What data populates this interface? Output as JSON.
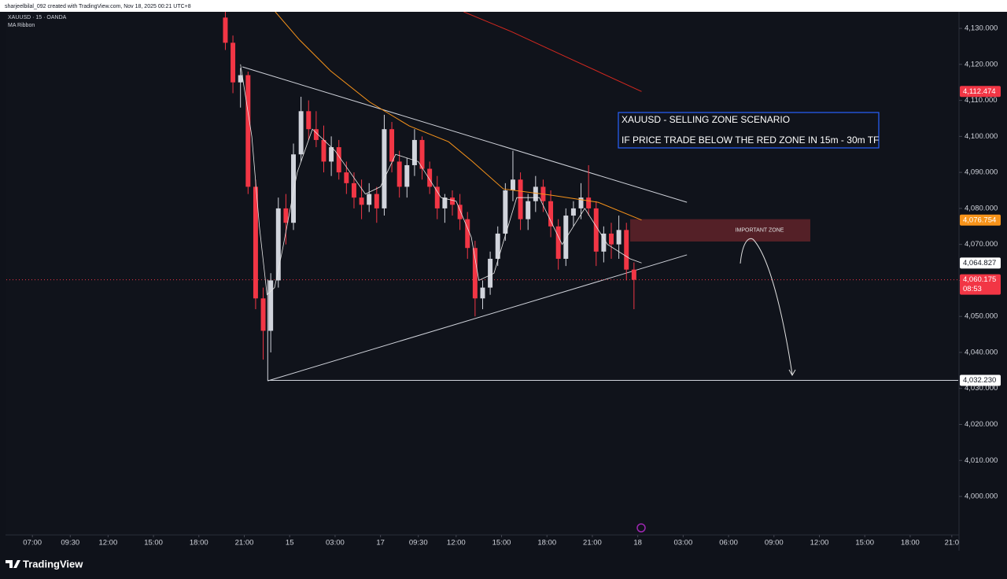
{
  "chart_data": {
    "type": "candlestick",
    "header": {
      "credit": "sharjeelbilal_092 created with TradingView.com, Nov 18, 2025 00:21 UTC+8",
      "symbol": "XAUUSD · 15 · OANDA",
      "indicator": "MA Ribbon"
    },
    "logo": "TradingView",
    "up_color": "#d1d4dc",
    "down_color": "#f23645",
    "x": [
      51,
      53,
      55,
      57,
      59,
      61,
      63,
      65,
      67,
      69,
      71,
      73,
      75,
      77,
      79,
      81,
      83,
      85,
      87,
      89,
      91,
      93,
      95,
      97,
      99,
      101,
      103,
      105,
      107,
      109,
      111,
      113,
      115,
      117,
      119,
      121,
      123,
      125,
      127,
      129,
      131,
      133,
      135,
      137,
      139,
      141,
      143,
      145,
      147,
      149,
      151,
      153,
      155,
      157,
      159
    ],
    "open": [
      4133,
      4126,
      4115,
      4117,
      4086,
      4055,
      4046,
      4060,
      4080,
      4076,
      4095,
      4107,
      4102,
      4099,
      4093,
      4097,
      4090,
      4087,
      4083,
      4081,
      4084,
      4080,
      4102,
      4093,
      4086,
      4092,
      4099,
      4091,
      4086,
      4080,
      4083,
      4081,
      4077,
      4069,
      4055,
      4058,
      4066,
      4073,
      4085,
      4088,
      4077,
      4082,
      4086,
      4082,
      4075,
      4066,
      4078,
      4080,
      4083,
      4080,
      4068,
      4073,
      4070,
      4074,
      4063
    ],
    "high": [
      4136,
      4128,
      4119,
      4118,
      4088,
      4058,
      4062,
      4083,
      4084,
      4098,
      4111,
      4110,
      4107,
      4103,
      4100,
      4099,
      4093,
      4090,
      4088,
      4087,
      4086,
      4106,
      4104,
      4096,
      4094,
      4102,
      4100,
      4093,
      4089,
      4084,
      4085,
      4084,
      4079,
      4071,
      4060,
      4068,
      4075,
      4087,
      4096,
      4090,
      4084,
      4089,
      4088,
      4085,
      4077,
      4080,
      4082,
      4087,
      4092,
      4082,
      4075,
      4076,
      4078,
      4076,
      4065
    ],
    "low": [
      4124,
      4112,
      4108,
      4084,
      4052,
      4038,
      4040,
      4058,
      4070,
      4074,
      4093,
      4099,
      4097,
      4090,
      4089,
      4088,
      4084,
      4080,
      4077,
      4079,
      4076,
      4078,
      4090,
      4083,
      4083,
      4089,
      4088,
      4084,
      4077,
      4076,
      4078,
      4074,
      4066,
      4050,
      4052,
      4056,
      4064,
      4071,
      4082,
      4074,
      4074,
      4079,
      4079,
      4072,
      4063,
      4064,
      4075,
      4077,
      4078,
      4064,
      4065,
      4066,
      4066,
      4060,
      4052
    ],
    "close": [
      4126,
      4115,
      4117,
      4086,
      4055,
      4046,
      4060,
      4080,
      4076,
      4095,
      4107,
      4102,
      4099,
      4093,
      4097,
      4090,
      4087,
      4083,
      4081,
      4084,
      4080,
      4102,
      4093,
      4086,
      4092,
      4099,
      4091,
      4086,
      4080,
      4083,
      4081,
      4077,
      4069,
      4055,
      4058,
      4066,
      4073,
      4085,
      4088,
      4077,
      4082,
      4086,
      4082,
      4075,
      4066,
      4078,
      4080,
      4083,
      4080,
      4068,
      4073,
      4070,
      4074,
      4063,
      4060.175
    ],
    "last_price_tag": {
      "value": 4060.175,
      "label": "4,060.175",
      "countdown": "08:53",
      "color": "#f23645"
    },
    "ma_series": [
      {
        "color": "#e8e8e8",
        "x": [
          55,
          58,
          60,
          62,
          64,
          66,
          70,
          74,
          80,
          88,
          92,
          96,
          102,
          108,
          112,
          116,
          118,
          122,
          128,
          134,
          140,
          146,
          152,
          158,
          161
        ],
        "values": [
          4120,
          4100,
          4075,
          4056,
          4058,
          4068,
          4090,
          4102,
          4096,
          4084,
          4086,
          4095,
          4093,
          4083,
          4082,
          4072,
          4060,
          4062,
          4083,
          4083,
          4070,
          4080,
          4070,
          4066,
          4064.827
        ],
        "price_tag": {
          "value": 4064.827,
          "label": "4,064.827",
          "bg": "#ffffff",
          "fg": "#131722"
        }
      },
      {
        "color": "#f7931a",
        "x": [
          64.2,
          70.5,
          78.8,
          89.2,
          99.6,
          110,
          116.2,
          124.5,
          137,
          149.5,
          161
        ],
        "values": [
          4134.6,
          4126.9,
          4118.2,
          4109.5,
          4102.9,
          4098.5,
          4093.1,
          4085.4,
          4083.7,
          4081.7,
          4076.754
        ],
        "price_tag": {
          "value": 4076.754,
          "label": "4,076.754",
          "bg": "#f7931a",
          "fg": "#ffffff"
        }
      },
      {
        "color": "#d6281f",
        "x": [
          114,
          126.6,
          141,
          161
        ],
        "values": [
          4134.6,
          4129.1,
          4122.1,
          4112.474
        ],
        "price_tag": {
          "value": 4112.474,
          "label": "4,112.474",
          "bg": "#f23645",
          "fg": "#ffffff"
        }
      }
    ],
    "trendlines": [
      {
        "x": [
          55.5,
          173
        ],
        "y": [
          4119.3,
          4081.7
        ]
      },
      {
        "x": [
          62.2,
          173
        ],
        "y": [
          4032.1,
          4067.1
        ]
      },
      {
        "x": [
          62.2,
          62.2
        ],
        "y": [
          4032.1,
          4060.3
        ]
      }
    ],
    "level": {
      "value": 4032.23,
      "label": "4,032.230",
      "x_start": 62.2
    },
    "zone": {
      "top": 4077,
      "bottom": 4070.8,
      "x": [
        158,
        205.6
      ],
      "label": "IMPORTANT ZONE",
      "color": "#5c2229"
    },
    "note": [
      "XAUUSD - SELLING ZONE SCENARIO",
      "IF PRICE TRADE BELOW THE RED ZONE IN 15m - 30m TF"
    ],
    "xlim": [
      -6.9,
      244.7
    ],
    "ylim": [
      3989.3,
      4134.6
    ],
    "xticks": [
      {
        "value": 0,
        "label": "07:00"
      },
      {
        "value": 10,
        "label": "09:30"
      },
      {
        "value": 20,
        "label": "12:00"
      },
      {
        "value": 32,
        "label": "15:00"
      },
      {
        "value": 44,
        "label": "18:00"
      },
      {
        "value": 56,
        "label": "21:00"
      },
      {
        "value": 68,
        "label": "15"
      },
      {
        "value": 80,
        "label": "03:00"
      },
      {
        "value": 92,
        "label": "17"
      },
      {
        "value": 102,
        "label": "09:30"
      },
      {
        "value": 112,
        "label": "12:00"
      },
      {
        "value": 124,
        "label": "15:00"
      },
      {
        "value": 136,
        "label": "18:00"
      },
      {
        "value": 148,
        "label": "21:00"
      },
      {
        "value": 160,
        "label": "18"
      },
      {
        "value": 172,
        "label": "03:00"
      },
      {
        "value": 184,
        "label": "06:00"
      },
      {
        "value": 196,
        "label": "09:00"
      },
      {
        "value": 208,
        "label": "12:00"
      },
      {
        "value": 220,
        "label": "15:00"
      },
      {
        "value": 232,
        "label": "18:00"
      },
      {
        "value": 243,
        "label": "21:0"
      }
    ],
    "yticks": [
      {
        "value": 4130,
        "label": "4,130.000"
      },
      {
        "value": 4120,
        "label": "4,120.000"
      },
      {
        "value": 4110,
        "label": "4,110.000"
      },
      {
        "value": 4100,
        "label": "4,100.000"
      },
      {
        "value": 4090,
        "label": "4,090.000"
      },
      {
        "value": 4080,
        "label": "4,080.000"
      },
      {
        "value": 4070,
        "label": "4,070.000"
      },
      {
        "value": 4060,
        "label": "4,060.000"
      },
      {
        "value": 4050,
        "label": "4,050.000"
      },
      {
        "value": 4040,
        "label": "4,040.000"
      },
      {
        "value": 4030,
        "label": "4,030.000"
      },
      {
        "value": 4020,
        "label": "4,020.000"
      },
      {
        "value": 4010,
        "label": "4,010.000"
      },
      {
        "value": 4000,
        "label": "4,000.000"
      }
    ],
    "grid": false
  }
}
